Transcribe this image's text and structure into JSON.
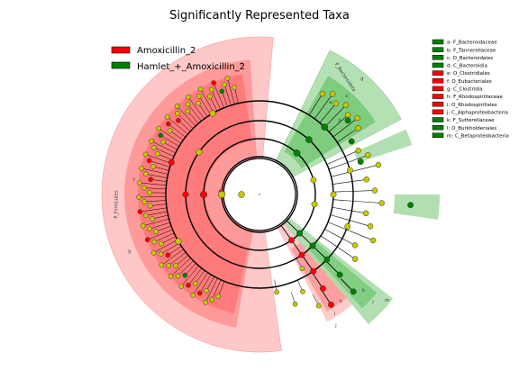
{
  "chart_data": {
    "type": "cladogram",
    "title": "Significantly Represented Taxa",
    "groups": [
      {
        "name": "Amoxicillin_2",
        "color": "#ff0000"
      },
      {
        "name": "Hamlet_+_Amoxicillin_2",
        "color": "#008000"
      }
    ],
    "taxa_legend": [
      {
        "label": "a: F_Bacteroidaceae",
        "group": "Hamlet_+_Amoxicillin_2"
      },
      {
        "label": "b: F_Tannerellaceae",
        "group": "Hamlet_+_Amoxicillin_2"
      },
      {
        "label": "c: O_Bacteroidales",
        "group": "Hamlet_+_Amoxicillin_2"
      },
      {
        "label": "d: C_Bacteroidia",
        "group": "Hamlet_+_Amoxicillin_2"
      },
      {
        "label": "e: O_Clostridiales",
        "group": "Amoxicillin_2"
      },
      {
        "label": "f: O_Eubacteriales",
        "group": "Amoxicillin_2"
      },
      {
        "label": "g: C_Clostridia",
        "group": "Amoxicillin_2"
      },
      {
        "label": "h: F_Rhodospirillaceae",
        "group": "Amoxicillin_2"
      },
      {
        "label": "i: O_Rhodospirillales",
        "group": "Amoxicillin_2"
      },
      {
        "label": "j: C_Alphaproteobacteria",
        "group": "Amoxicillin_2"
      },
      {
        "label": "k: F_Sutterellaceae",
        "group": "Hamlet_+_Amoxicillin_2"
      },
      {
        "label": "l: O_Burkholderiales",
        "group": "Hamlet_+_Amoxicillin_2"
      },
      {
        "label": "m: C_Betaproteobacteria",
        "group": "Hamlet_+_Amoxicillin_2"
      }
    ],
    "clade_labels": [
      {
        "text": "P_Bacteroidota",
        "group": "Hamlet_+_Amoxicillin_2"
      },
      {
        "text": "P_Firmicutes",
        "group": "Amoxicillin_2"
      }
    ]
  },
  "colors": {
    "red_band": "#ffc8c8",
    "red_mid": "#ff9a9a",
    "red_deep": "#ff6a6a",
    "green_band": "#a8dca8",
    "green_deep": "#6cc46c",
    "node_neutral": "#c8c800",
    "node_red": "#ff0000",
    "node_green": "#008000"
  }
}
